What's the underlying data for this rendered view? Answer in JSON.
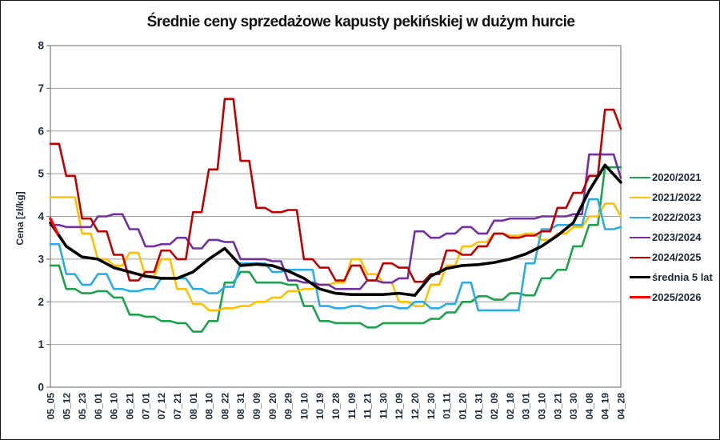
{
  "chart_data": {
    "type": "line",
    "title": "Średnie ceny sprzedażowe kapusty pekińskiej w dużym hurcie",
    "ylabel": "Cena [zł/kg]",
    "xlabel": "",
    "ylim": [
      0,
      8
    ],
    "y_ticks": [
      0,
      1,
      2,
      3,
      4,
      5,
      6,
      7,
      8
    ],
    "grid": "horizontal",
    "legend_position": "right-outside",
    "colors": {
      "background": "#FFFFFF",
      "figure_border": "#141414",
      "grid": "#9E9E9E",
      "axis": "#7F7F7F",
      "text": "#1F2A38"
    },
    "categories": [
      "05_05",
      "05_12",
      "05_23",
      "06_01",
      "06_10",
      "06_21",
      "07_01",
      "07_12",
      "07_21",
      "08_01",
      "08_10",
      "08_22",
      "08_31",
      "09_09",
      "09_20",
      "09_29",
      "10_10",
      "10_19",
      "10_28",
      "11_09",
      "11_21",
      "11_30",
      "12_09",
      "12_20",
      "12_30",
      "01_11",
      "01_20",
      "01_31",
      "02_09",
      "02_18",
      "03_01",
      "03_10",
      "03_21",
      "03_30",
      "04_08",
      "04_19",
      "04_28"
    ],
    "series": [
      {
        "name": "2020/2021",
        "color": "#1CA24C",
        "width": 2.6,
        "step": true,
        "values": [
          2.85,
          2.3,
          2.2,
          2.25,
          2.1,
          1.7,
          1.65,
          1.55,
          1.5,
          1.3,
          1.55,
          2.45,
          2.7,
          2.45,
          2.45,
          2.4,
          1.9,
          1.55,
          1.5,
          1.5,
          1.4,
          1.5,
          1.5,
          1.5,
          1.6,
          1.75,
          2.0,
          2.13,
          2.05,
          2.2,
          2.15,
          2.55,
          2.75,
          3.3,
          3.8,
          5.15,
          5.15
        ]
      },
      {
        "name": "2021/2022",
        "color": "#FFC000",
        "width": 2.6,
        "step": true,
        "values": [
          4.45,
          4.45,
          3.6,
          3.0,
          2.85,
          3.15,
          2.6,
          3.0,
          2.3,
          1.95,
          1.8,
          1.85,
          1.9,
          2.0,
          2.1,
          2.25,
          2.3,
          2.4,
          2.45,
          3.0,
          2.65,
          2.45,
          2.0,
          1.9,
          2.4,
          2.85,
          3.3,
          3.4,
          3.6,
          3.55,
          3.6,
          3.45,
          3.6,
          3.75,
          4.0,
          4.3,
          4.0
        ]
      },
      {
        "name": "2022/2023",
        "color": "#2BACE2",
        "width": 2.6,
        "step": true,
        "values": [
          3.35,
          2.65,
          2.4,
          2.65,
          2.3,
          2.25,
          2.3,
          2.55,
          2.55,
          2.3,
          2.2,
          2.35,
          2.9,
          2.9,
          2.7,
          2.75,
          2.75,
          1.9,
          1.85,
          1.9,
          1.85,
          1.9,
          1.85,
          2.0,
          1.85,
          1.95,
          2.45,
          1.8,
          1.8,
          1.8,
          2.9,
          3.7,
          3.8,
          3.8,
          4.4,
          3.7,
          3.75
        ]
      },
      {
        "name": "2023/2024",
        "color": "#7030A0",
        "width": 2.6,
        "step": true,
        "values": [
          3.8,
          3.75,
          3.75,
          4.0,
          4.05,
          3.7,
          3.3,
          3.35,
          3.5,
          3.25,
          3.45,
          3.4,
          3.0,
          3.0,
          2.95,
          2.5,
          2.45,
          2.4,
          2.3,
          2.3,
          2.5,
          2.45,
          2.55,
          3.65,
          3.5,
          3.6,
          3.75,
          3.6,
          3.9,
          3.95,
          3.95,
          4.0,
          4.0,
          4.05,
          5.45,
          5.45,
          4.9
        ]
      },
      {
        "name": "2024/2025",
        "color": "#C00000",
        "width": 2.6,
        "step": true,
        "values": [
          5.7,
          4.95,
          3.95,
          3.65,
          3.1,
          2.5,
          2.7,
          3.2,
          3.0,
          4.1,
          5.1,
          6.75,
          5.3,
          4.2,
          4.1,
          4.15,
          3.0,
          2.8,
          2.5,
          2.85,
          2.5,
          2.9,
          2.8,
          2.47,
          2.65,
          3.2,
          3.1,
          3.3,
          3.6,
          3.5,
          3.55,
          3.65,
          4.2,
          4.55,
          4.95,
          6.5,
          6.05
        ]
      },
      {
        "name": "średnia 5 lat",
        "color": "#000000",
        "width": 3.6,
        "step": false,
        "values": [
          3.85,
          3.3,
          3.05,
          3.0,
          2.8,
          2.7,
          2.6,
          2.55,
          2.55,
          2.7,
          3.0,
          3.25,
          2.85,
          2.88,
          2.85,
          2.72,
          2.55,
          2.3,
          2.2,
          2.17,
          2.17,
          2.17,
          2.2,
          2.15,
          2.6,
          2.78,
          2.85,
          2.87,
          2.92,
          3.0,
          3.12,
          3.3,
          3.55,
          3.85,
          4.6,
          5.2,
          4.8
        ]
      },
      {
        "name": "2025/2026",
        "color": "#FF0000",
        "width": 3.5,
        "step": false,
        "values": [
          3.95,
          3.6
        ],
        "x_index": [
          0,
          0.45
        ]
      }
    ]
  }
}
